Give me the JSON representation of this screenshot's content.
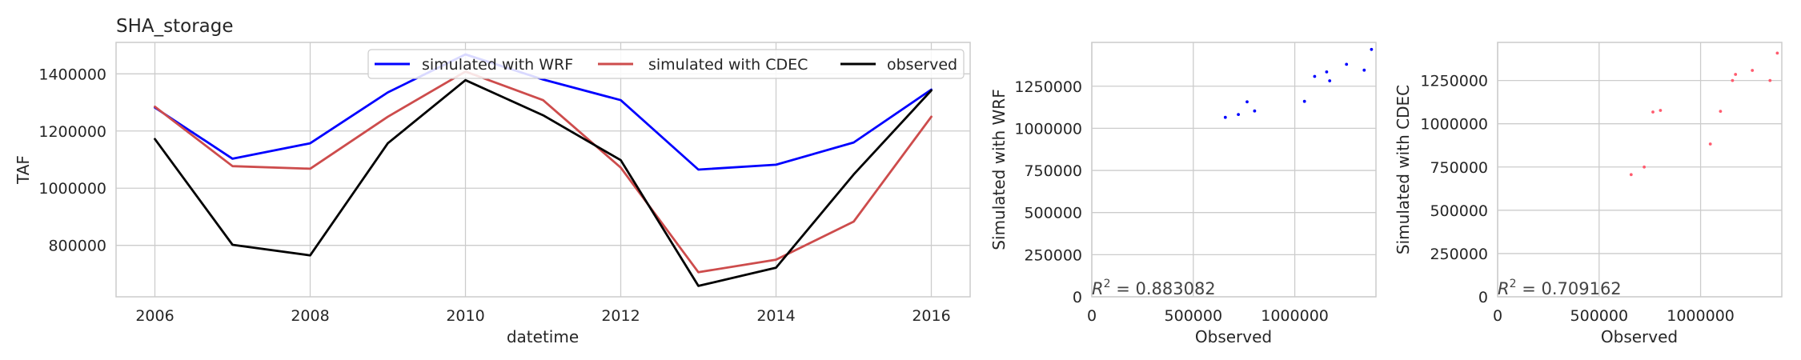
{
  "chart_data": [
    {
      "type": "line",
      "title": "SHA_storage",
      "xlabel": "datetime",
      "ylabel": "TAF",
      "x": [
        2006,
        2007,
        2008,
        2009,
        2010,
        2011,
        2012,
        2013,
        2014,
        2015,
        2016
      ],
      "xticks": [
        "2006",
        "2008",
        "2010",
        "2012",
        "2014",
        "2016"
      ],
      "yticks": [
        "800000",
        "1000000",
        "1200000",
        "1400000"
      ],
      "xlim": [
        2005.5,
        2016.5
      ],
      "ylim": [
        620000,
        1510000
      ],
      "grid": true,
      "legend_position": "top-right",
      "series": [
        {
          "name": "simulated with WRF",
          "color": "#0000ff",
          "values": [
            1282000,
            1103000,
            1157000,
            1335000,
            1468000,
            1380000,
            1308000,
            1065000,
            1082000,
            1160000,
            1345000
          ]
        },
        {
          "name": "simulated with CDEC",
          "color": "#cd4c4c",
          "values": [
            1285000,
            1077000,
            1068000,
            1250000,
            1408000,
            1308000,
            1072000,
            706000,
            750000,
            883000,
            1250000
          ]
        },
        {
          "name": "observed",
          "color": "#000000",
          "values": [
            1172000,
            802000,
            765000,
            1157000,
            1378000,
            1255000,
            1098000,
            658000,
            722000,
            1048000,
            1342000
          ]
        }
      ]
    },
    {
      "type": "scatter",
      "xlabel": "Observed",
      "ylabel": "Simulated with WRF",
      "annotation": {
        "prefix": "R",
        "sup": "2",
        "value": " = 0.883082"
      },
      "xlim": [
        0,
        1400000
      ],
      "ylim": [
        0,
        1510000
      ],
      "xticks": [
        "0",
        "500000",
        "1000000"
      ],
      "xtick_values": [
        0,
        500000,
        1000000
      ],
      "yticks": [
        "0",
        "250000",
        "500000",
        "750000",
        "1000000",
        "1250000"
      ],
      "ytick_values": [
        0,
        250000,
        500000,
        750000,
        1000000,
        1250000
      ],
      "grid": true,
      "color": "#0000ff",
      "points": [
        [
          658000,
          1065000
        ],
        [
          722000,
          1082000
        ],
        [
          765000,
          1157000
        ],
        [
          802000,
          1103000
        ],
        [
          1048000,
          1160000
        ],
        [
          1098000,
          1308000
        ],
        [
          1157000,
          1335000
        ],
        [
          1172000,
          1282000
        ],
        [
          1255000,
          1380000
        ],
        [
          1342000,
          1345000
        ],
        [
          1378000,
          1468000
        ]
      ]
    },
    {
      "type": "scatter",
      "xlabel": "Observed",
      "ylabel": "Simulated with CDEC",
      "annotation": {
        "prefix": "R",
        "sup": "2",
        "value": " = 0.709162"
      },
      "xlim": [
        0,
        1400000
      ],
      "ylim": [
        0,
        1470000
      ],
      "xticks": [
        "0",
        "500000",
        "1000000"
      ],
      "xtick_values": [
        0,
        500000,
        1000000
      ],
      "yticks": [
        "0",
        "250000",
        "500000",
        "750000",
        "1000000",
        "1250000"
      ],
      "ytick_values": [
        0,
        250000,
        500000,
        750000,
        1000000,
        1250000
      ],
      "grid": true,
      "color": "#ff5b6e",
      "points": [
        [
          658000,
          706000
        ],
        [
          722000,
          750000
        ],
        [
          765000,
          1068000
        ],
        [
          802000,
          1077000
        ],
        [
          1048000,
          883000
        ],
        [
          1098000,
          1072000
        ],
        [
          1157000,
          1250000
        ],
        [
          1172000,
          1285000
        ],
        [
          1255000,
          1308000
        ],
        [
          1342000,
          1250000
        ],
        [
          1378000,
          1408000
        ]
      ]
    }
  ]
}
